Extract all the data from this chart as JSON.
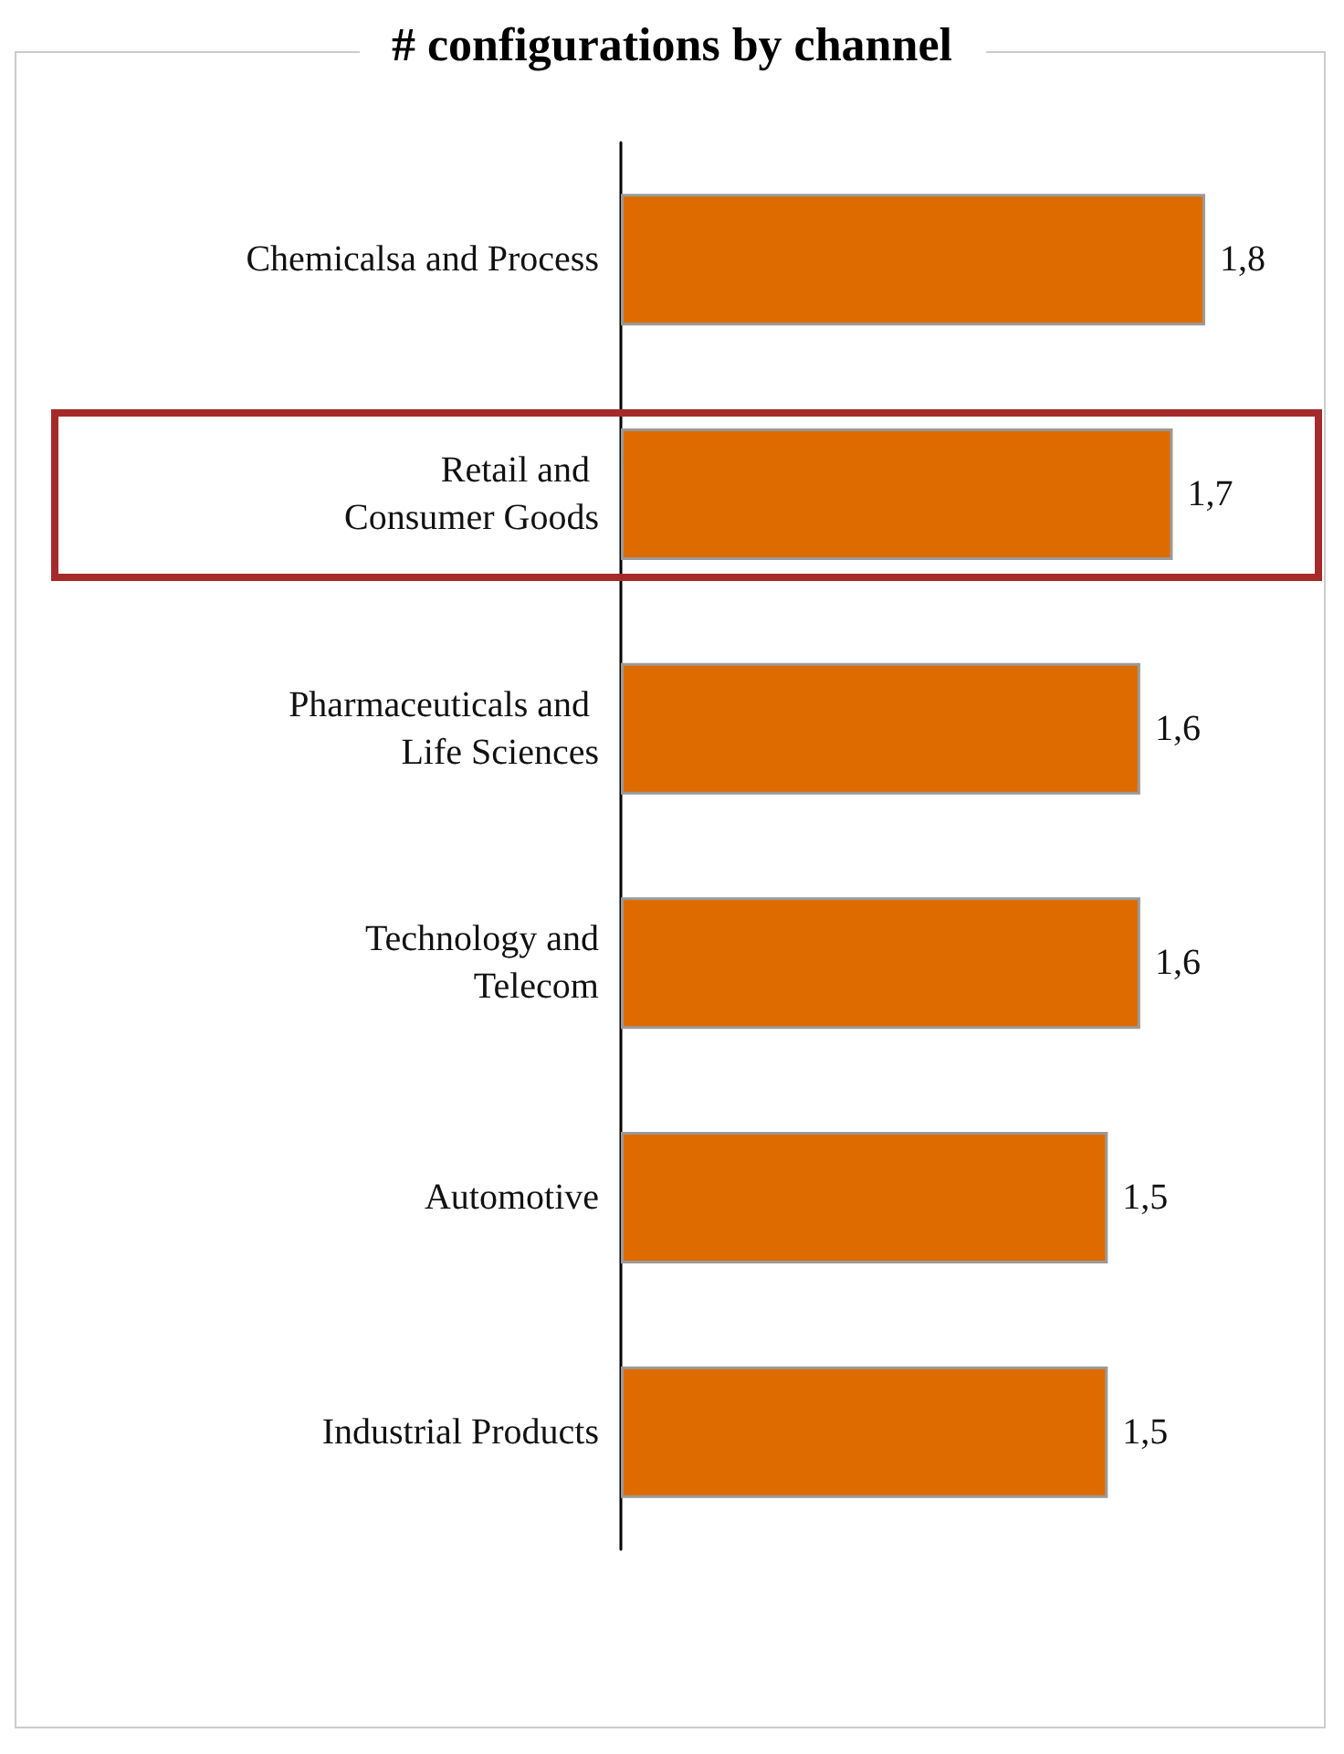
{
  "chart_data": {
    "type": "bar",
    "orientation": "horizontal",
    "title": "# configurations by channel",
    "categories": [
      "Chemicalsa and Process",
      "Retail and \nConsumer Goods",
      "Pharmaceuticals and \nLife Sciences",
      "Technology and\nTelecom",
      "Automotive",
      "Industrial Products"
    ],
    "values": [
      1.8,
      1.7,
      1.6,
      1.6,
      1.5,
      1.5
    ],
    "value_labels": [
      "1,8",
      "1,7",
      "1,6",
      "1,6",
      "1,5",
      "1,5"
    ],
    "color": "#dd6b00"
  }
}
